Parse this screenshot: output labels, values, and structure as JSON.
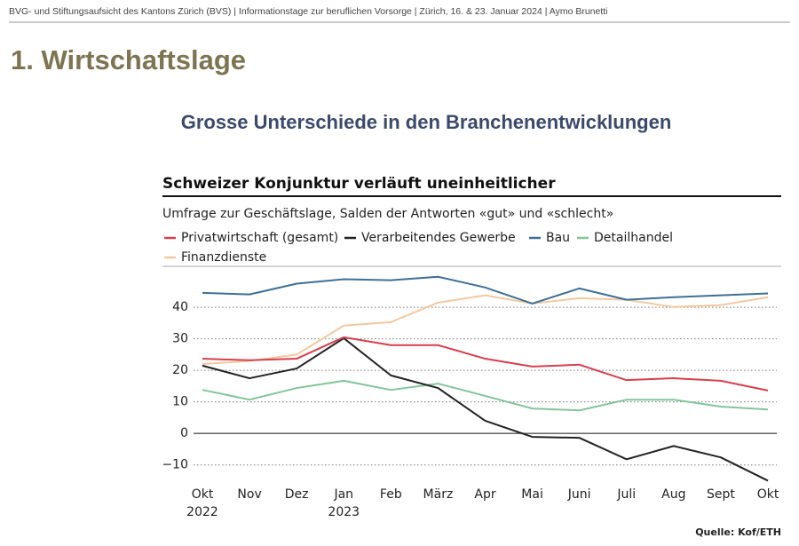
{
  "slide": {
    "header": "BVG- und Stiftungsaufsicht des Kantons Zürich (BVS) |  Informationstage zur beruflichen Vorsorge | Zürich, 16. & 23. Januar 2024 | Aymo Brunetti",
    "heading": "1. Wirtschaftslage",
    "subheading": "Grosse Unterschiede in den Branchenentwicklungen"
  },
  "chart_data": {
    "type": "line",
    "title": "Schweizer Konjunktur verläuft uneinheitlicher",
    "subtitle": "Umfrage zur Geschäftslage, Salden der Antworten «gut» und «schlecht»",
    "source": "Quelle: Kof/ETH",
    "categories": [
      "Okt 2022",
      "Nov",
      "Dez",
      "Jan 2023",
      "Feb",
      "März",
      "Apr",
      "Mai",
      "Juni",
      "Juli",
      "Aug",
      "Sept",
      "Okt"
    ],
    "ylim": [
      -16,
      53
    ],
    "yticks": [
      {
        "value": -10,
        "label": "−10"
      },
      0,
      10,
      20,
      30,
      40
    ],
    "grid": true,
    "series": [
      {
        "name": "Privatwirtschaft (gesamt)",
        "color": "#d6404e",
        "values": [
          23.7,
          23.2,
          23.7,
          30.5,
          28,
          28,
          23.7,
          21.2,
          21.8,
          16.9,
          17.5,
          16.7,
          13.6
        ]
      },
      {
        "name": "Verarbeitendes Gewerbe",
        "color": "#222222",
        "values": [
          21.5,
          17.5,
          20.6,
          30.2,
          18.4,
          14.4,
          4,
          -1.1,
          -1.4,
          -8.2,
          -4,
          -7.6,
          -15
        ]
      },
      {
        "name": "Bau",
        "color": "#3f6f96",
        "values": [
          44.6,
          44.1,
          47.5,
          48.9,
          48.6,
          49.7,
          46.3,
          41.2,
          46,
          42.4,
          43.2,
          43.8,
          44.4
        ]
      },
      {
        "name": "Detailhandel",
        "color": "#84c49a",
        "values": [
          13.8,
          10.7,
          14.4,
          16.7,
          13.8,
          15.8,
          11.9,
          7.9,
          7.3,
          10.7,
          10.7,
          8.5,
          7.6
        ]
      },
      {
        "name": "Finanzdienste",
        "color": "#f2c8a0",
        "values": [
          22,
          23,
          25,
          34.2,
          35.3,
          41.5,
          43.8,
          41.2,
          42.9,
          42.4,
          40.1,
          40.7,
          43.2
        ]
      }
    ]
  }
}
